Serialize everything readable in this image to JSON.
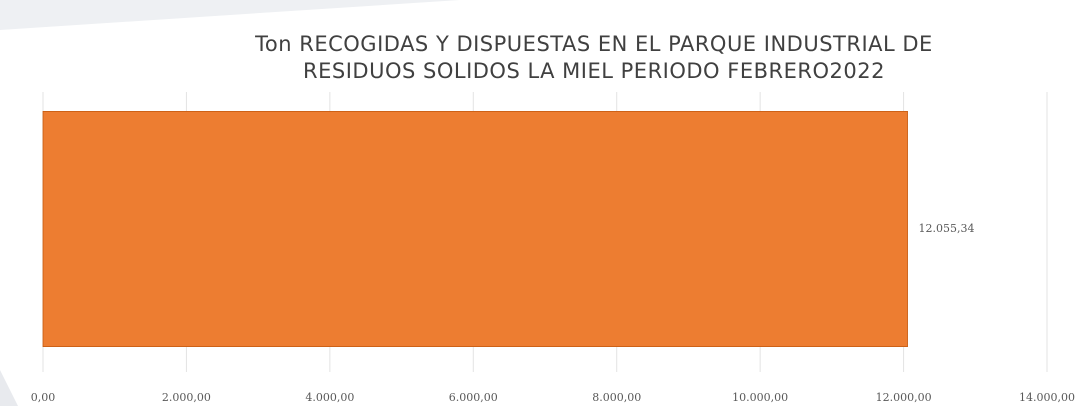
{
  "chart_data": {
    "type": "bar",
    "orientation": "horizontal",
    "title": [
      "Ton RECOGIDAS Y DISPUESTAS  EN EL PARQUE INDUSTRIAL  DE",
      "RESIDUOS SOLIDOS LA MIEL PERIODO  FEBRERO2022"
    ],
    "categories": [
      null
    ],
    "values": [
      12055.34
    ],
    "value_labels": [
      "12.055,34"
    ],
    "color": "#ed7d31",
    "xlim": [
      0,
      14000
    ],
    "xticks": [
      {
        "value": 0,
        "label": "0,00"
      },
      {
        "value": 2000,
        "label": "2.000,00"
      },
      {
        "value": 4000,
        "label": "4.000,00"
      },
      {
        "value": 6000,
        "label": "6.000,00"
      },
      {
        "value": 8000,
        "label": "8.000,00"
      },
      {
        "value": 10000,
        "label": "10.000,00"
      },
      {
        "value": 12000,
        "label": "12.000,00"
      },
      {
        "value": 14000,
        "label": "14.000,00"
      }
    ],
    "grid": true
  }
}
